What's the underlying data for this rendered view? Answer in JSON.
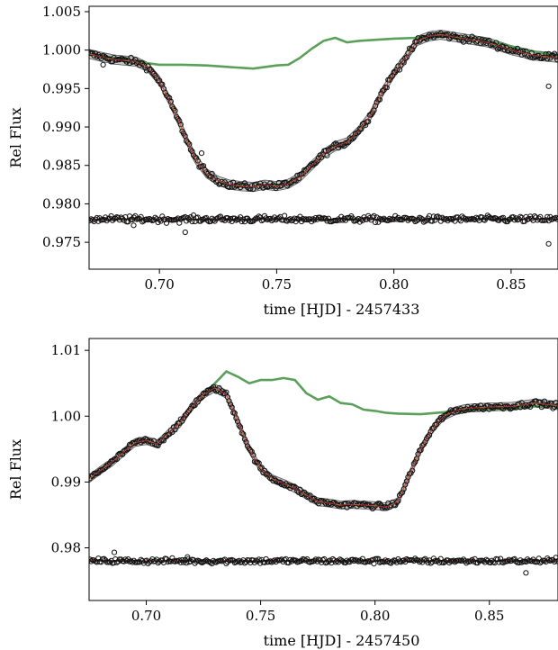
{
  "chart_data": [
    {
      "type": "scatter",
      "title": "",
      "xlabel": "time [HJD] - 2457433",
      "ylabel": "Rel Flux",
      "xlim": [
        0.67,
        0.87
      ],
      "ylim": [
        0.9715,
        1.0057
      ],
      "xticks": [
        0.7,
        0.75,
        0.8,
        0.85
      ],
      "xtick_labels": [
        "0.70",
        "0.75",
        "0.80",
        "0.85"
      ],
      "yticks": [
        0.975,
        0.98,
        0.985,
        0.99,
        0.995,
        1.0,
        1.005
      ],
      "ytick_labels": [
        "0.975",
        "0.980",
        "0.985",
        "0.990",
        "0.995",
        "1.000",
        "1.005"
      ],
      "grid": false,
      "legend": "none",
      "residual_offset": 0.978,
      "series": [
        {
          "kind": "model-band",
          "x": [
            0.67,
            0.68,
            0.69,
            0.695,
            0.7,
            0.705,
            0.71,
            0.715,
            0.72,
            0.725,
            0.73,
            0.735,
            0.74,
            0.745,
            0.75,
            0.755,
            0.76,
            0.765,
            0.77,
            0.775,
            0.78,
            0.785,
            0.79,
            0.795,
            0.8,
            0.805,
            0.81,
            0.815,
            0.82,
            0.83,
            0.84,
            0.85,
            0.86,
            0.87
          ],
          "y": [
            0.9995,
            0.9988,
            0.9985,
            0.9978,
            0.996,
            0.993,
            0.9895,
            0.986,
            0.984,
            0.983,
            0.9825,
            0.9823,
            0.9822,
            0.9825,
            0.9823,
            0.9826,
            0.9835,
            0.985,
            0.9865,
            0.9875,
            0.988,
            0.9895,
            0.9915,
            0.9945,
            0.997,
            0.999,
            1.0012,
            1.0018,
            1.002,
            1.0015,
            1.001,
            1.0,
            0.9993,
            0.999
          ]
        },
        {
          "kind": "detrend-line",
          "color": "#5aa05a",
          "x": [
            0.67,
            0.68,
            0.69,
            0.7,
            0.71,
            0.72,
            0.73,
            0.74,
            0.75,
            0.755,
            0.76,
            0.765,
            0.77,
            0.775,
            0.78,
            0.785,
            0.79,
            0.8,
            0.81,
            0.82,
            0.83,
            0.84,
            0.85,
            0.86,
            0.87
          ],
          "y": [
            0.9995,
            0.999,
            0.9985,
            0.9981,
            0.9981,
            0.998,
            0.9978,
            0.9976,
            0.998,
            0.9981,
            0.999,
            1.0002,
            1.0012,
            1.0016,
            1.001,
            1.0012,
            1.0013,
            1.0015,
            1.0016,
            1.0018,
            1.0016,
            1.0012,
            1.0005,
            0.9998,
            0.9992
          ]
        },
        {
          "kind": "residual-line",
          "color": "#b04040",
          "x": [
            0.67,
            0.87
          ],
          "y": [
            0.978,
            0.978
          ]
        }
      ],
      "scatter_noise": 0.0004,
      "outliers": [
        {
          "x": 0.676,
          "y": 0.9981
        },
        {
          "x": 0.718,
          "y": 0.9866
        },
        {
          "x": 0.866,
          "y": 0.9953
        },
        {
          "x": 0.689,
          "y": 0.9772
        },
        {
          "x": 0.711,
          "y": 0.9763
        },
        {
          "x": 0.866,
          "y": 0.9748
        }
      ]
    },
    {
      "type": "scatter",
      "title": "",
      "xlabel": "time [HJD] - 2457450",
      "ylabel": "Rel Flux",
      "xlim": [
        0.675,
        0.88
      ],
      "ylim": [
        0.972,
        1.0118
      ],
      "xticks": [
        0.7,
        0.75,
        0.8,
        0.85
      ],
      "xtick_labels": [
        "0.70",
        "0.75",
        "0.80",
        "0.85"
      ],
      "yticks": [
        0.98,
        0.99,
        1.0,
        1.01
      ],
      "ytick_labels": [
        "0.98",
        "0.99",
        "1.00",
        "1.01"
      ],
      "grid": false,
      "legend": "none",
      "residual_offset": 0.978,
      "series": [
        {
          "kind": "model-band",
          "x": [
            0.675,
            0.68,
            0.685,
            0.69,
            0.695,
            0.7,
            0.705,
            0.71,
            0.715,
            0.72,
            0.725,
            0.73,
            0.735,
            0.74,
            0.745,
            0.75,
            0.755,
            0.76,
            0.765,
            0.77,
            0.775,
            0.78,
            0.785,
            0.79,
            0.795,
            0.8,
            0.805,
            0.81,
            0.815,
            0.82,
            0.825,
            0.83,
            0.835,
            0.84,
            0.85,
            0.86,
            0.87,
            0.88
          ],
          "y": [
            0.9905,
            0.9918,
            0.993,
            0.9945,
            0.996,
            0.9963,
            0.9958,
            0.9975,
            0.999,
            1.0015,
            1.0033,
            1.0043,
            1.0033,
            0.9993,
            0.995,
            0.992,
            0.9905,
            0.9898,
            0.989,
            0.988,
            0.987,
            0.9868,
            0.9865,
            0.9866,
            0.9865,
            0.9864,
            0.9862,
            0.987,
            0.991,
            0.995,
            0.998,
            1.0,
            1.0008,
            1.0012,
            1.0014,
            1.0015,
            1.002,
            1.0016
          ]
        },
        {
          "kind": "detrend-line",
          "color": "#5aa05a",
          "x": [
            0.725,
            0.73,
            0.735,
            0.74,
            0.745,
            0.75,
            0.755,
            0.76,
            0.765,
            0.77,
            0.775,
            0.78,
            0.785,
            0.79,
            0.795,
            0.8,
            0.805,
            0.81,
            0.82,
            0.83,
            0.84,
            0.85,
            0.86,
            0.87,
            0.88
          ],
          "y": [
            1.003,
            1.005,
            1.0068,
            1.006,
            1.005,
            1.0055,
            1.0055,
            1.0058,
            1.0055,
            1.0035,
            1.0025,
            1.003,
            1.002,
            1.0018,
            1.001,
            1.0008,
            1.0005,
            1.0004,
            1.0003,
            1.0006,
            1.0009,
            1.0011,
            1.0012,
            1.0015,
            1.0015
          ]
        },
        {
          "kind": "residual-line",
          "color": "#b04040",
          "x": [
            0.675,
            0.88
          ],
          "y": [
            0.978,
            0.978
          ]
        }
      ],
      "scatter_noise": 0.0004,
      "outliers": [
        {
          "x": 0.686,
          "y": 0.9793
        },
        {
          "x": 0.718,
          "y": 0.9786
        },
        {
          "x": 0.866,
          "y": 0.9762
        }
      ]
    }
  ]
}
